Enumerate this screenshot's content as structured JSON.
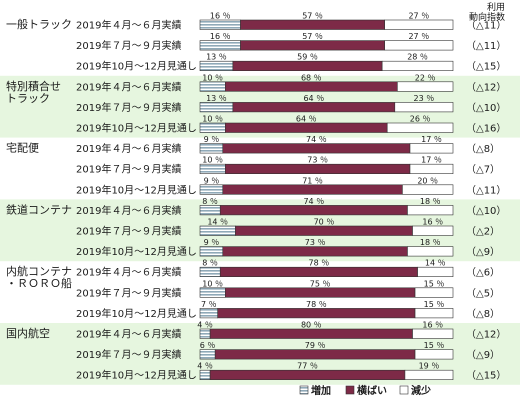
{
  "chart_data": {
    "type": "bar",
    "orientation": "horizontal-stacked-100",
    "header": [
      "利用",
      "動向指数"
    ],
    "segment_names": [
      "増加",
      "横ばい",
      "減少"
    ],
    "colors": {
      "増加": "#9fb7c4",
      "横ばい": "#7d2a47",
      "減少": "#ffffff"
    },
    "groups": [
      {
        "name": "一般トラック",
        "rows": [
          {
            "period": "2019年４月～６月実績",
            "values": [
              16,
              57,
              27
            ],
            "index": "（△11）"
          },
          {
            "period": "2019年７月～９月実績",
            "values": [
              16,
              57,
              27
            ],
            "index": "（△11）"
          },
          {
            "period": "2019年10月～12月見通し",
            "values": [
              13,
              59,
              28
            ],
            "index": "（△15）"
          }
        ]
      },
      {
        "name": "特別積合せトラック",
        "rows": [
          {
            "period": "2019年４月～６月実績",
            "values": [
              10,
              68,
              22
            ],
            "index": "（△12）"
          },
          {
            "period": "2019年７月～９月実績",
            "values": [
              13,
              64,
              23
            ],
            "index": "（△10）"
          },
          {
            "period": "2019年10月～12月見通し",
            "values": [
              10,
              64,
              26
            ],
            "index": "（△16）"
          }
        ]
      },
      {
        "name": "宅配便",
        "rows": [
          {
            "period": "2019年４月～６月実績",
            "values": [
              9,
              74,
              17
            ],
            "index": "（△8）"
          },
          {
            "period": "2019年７月～９月実績",
            "values": [
              10,
              73,
              17
            ],
            "index": "（△7）"
          },
          {
            "period": "2019年10月～12月見通し",
            "values": [
              9,
              71,
              20
            ],
            "index": "（△11）"
          }
        ]
      },
      {
        "name": "鉄道コンテナ",
        "rows": [
          {
            "period": "2019年４月～６月実績",
            "values": [
              8,
              74,
              18
            ],
            "index": "（△10）"
          },
          {
            "period": "2019年７月～９月実績",
            "values": [
              14,
              70,
              16
            ],
            "index": "（△2）"
          },
          {
            "period": "2019年10月～12月見通し",
            "values": [
              9,
              73,
              18
            ],
            "index": "（△9）"
          }
        ]
      },
      {
        "name": "内航コンテナ・ＲＯＲＯ船",
        "rows": [
          {
            "period": "2019年４月～６月実績",
            "values": [
              8,
              78,
              14
            ],
            "index": "（△6）"
          },
          {
            "period": "2019年７月～９月実績",
            "values": [
              10,
              75,
              15
            ],
            "index": "（△5）"
          },
          {
            "period": "2019年10月～12月見通し",
            "values": [
              7,
              78,
              15
            ],
            "index": "（△8）"
          }
        ]
      },
      {
        "name": "国内航空",
        "rows": [
          {
            "period": "2019年４月～６月実績",
            "values": [
              4,
              80,
              16
            ],
            "index": "（△12）"
          },
          {
            "period": "2019年７月～９月実績",
            "values": [
              6,
              79,
              15
            ],
            "index": "（△9）"
          },
          {
            "period": "2019年10月～12月見通し",
            "values": [
              4,
              77,
              19
            ],
            "index": "（△15）"
          }
        ]
      }
    ],
    "category_label_lines": {
      "一般トラック": [
        "一般トラック"
      ],
      "特別積合せトラック": [
        "特別積合せ",
        "トラック"
      ],
      "宅配便": [
        "宅配便"
      ],
      "鉄道コンテナ": [
        "鉄道コンテナ"
      ],
      "内航コンテナ・ＲＯＲＯ船": [
        "内航コンテナ",
        "・ＲＯＲＯ船"
      ],
      "国内航空": [
        "国内航空"
      ]
    },
    "value_suffix": "％",
    "banded_groups": [
      1,
      3,
      5
    ],
    "legend_position": "bottom-right"
  }
}
